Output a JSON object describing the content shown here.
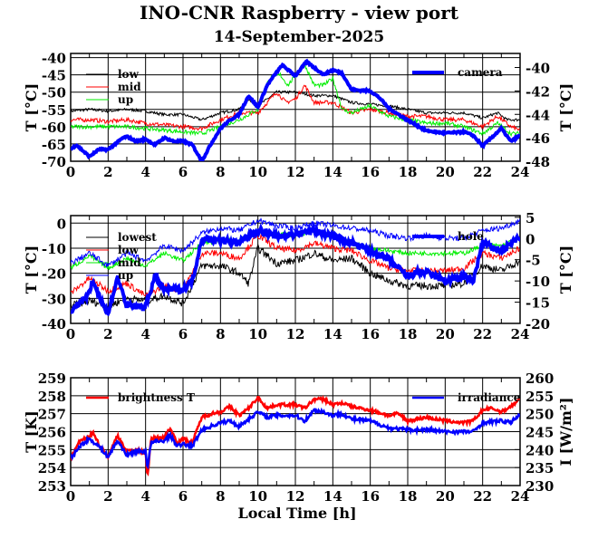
{
  "title": "INO-CNR Raspberry - view port",
  "subtitle": "14-September-2025",
  "chart_data": [
    {
      "type": "line",
      "title": "",
      "xlabel": "",
      "ylabel": "T [°C]",
      "y2label": "T [°C]",
      "xlim": [
        0,
        24
      ],
      "ylim": [
        -70,
        -38.8
      ],
      "y2lim": [
        -48,
        -38.8
      ],
      "xticks": [
        0,
        2,
        4,
        6,
        8,
        10,
        12,
        14,
        16,
        18,
        20,
        22,
        24
      ],
      "yticks": [
        -40,
        -45,
        -50,
        -55,
        -60,
        -65,
        -70
      ],
      "y2ticks": [
        -40,
        -42,
        -44,
        -46,
        -48
      ],
      "grid": true,
      "series": [
        {
          "name": "low",
          "color": "#000000",
          "axis": "left",
          "x": [
            0,
            1,
            2,
            3,
            4,
            5,
            6,
            7,
            8,
            9,
            9.5,
            10,
            11,
            12,
            13,
            14,
            15,
            16,
            17,
            18,
            19,
            20,
            21,
            22,
            22.8,
            23.3,
            24
          ],
          "y": [
            -55.5,
            -55,
            -55.5,
            -55,
            -55.5,
            -56.5,
            -56.5,
            -58,
            -56,
            -55,
            -52,
            -54,
            -50,
            -50,
            -51,
            -51,
            -53,
            -53.5,
            -54,
            -55,
            -56,
            -56,
            -56,
            -57.5,
            -56,
            -58,
            -58
          ]
        },
        {
          "name": "mid",
          "color": "#ff0000",
          "axis": "left",
          "x": [
            0,
            1,
            2,
            3,
            4,
            5,
            6,
            7,
            8,
            9,
            10,
            11,
            11.5,
            12,
            12.5,
            13,
            14,
            15,
            16,
            17,
            18,
            19,
            20,
            21,
            22,
            22.8,
            23.5,
            24
          ],
          "y": [
            -58,
            -58,
            -58.5,
            -58,
            -59,
            -59.5,
            -60,
            -60.5,
            -58,
            -56,
            -56,
            -50,
            -53,
            -52,
            -48,
            -53,
            -53,
            -56,
            -55,
            -56,
            -57,
            -57,
            -58,
            -58,
            -60,
            -57,
            -60,
            -61
          ]
        },
        {
          "name": "up",
          "color": "#00ee00",
          "axis": "left",
          "x": [
            0,
            1,
            2,
            3,
            4,
            5,
            6,
            7,
            8,
            9,
            10,
            10.6,
            11.2,
            11.6,
            12.5,
            13,
            13.5,
            14,
            14.5,
            15,
            16,
            17,
            18,
            19,
            20,
            21,
            22,
            22.8,
            23.5,
            24
          ],
          "y": [
            -60,
            -60,
            -60,
            -60,
            -60.5,
            -61,
            -61.5,
            -62,
            -60,
            -58,
            -55,
            -46,
            -45,
            -48,
            -42,
            -48,
            -48,
            -46,
            -55,
            -56,
            -54,
            -57,
            -58,
            -59,
            -59,
            -60,
            -62,
            -59,
            -62,
            -62
          ]
        },
        {
          "name": "camera",
          "color": "#0000ff",
          "axis": "right",
          "x": [
            0,
            0.3,
            1,
            1.5,
            2,
            2.8,
            3,
            3.5,
            4,
            4.5,
            5,
            5.5,
            6,
            6.5,
            7,
            7.5,
            8,
            8.5,
            9,
            9.5,
            10,
            10.5,
            11,
            11.3,
            12,
            12.6,
            13,
            13.5,
            14,
            14.5,
            15,
            16,
            16.5,
            17,
            18,
            19,
            20,
            21,
            21.5,
            22,
            23,
            23.5,
            24
          ],
          "y": [
            -47,
            -46.6,
            -47.6,
            -47,
            -47,
            -46,
            -45.9,
            -46.3,
            -46.1,
            -46.6,
            -46,
            -46.3,
            -46.3,
            -46.6,
            -48,
            -46.5,
            -45.2,
            -44.5,
            -44,
            -42.4,
            -43.4,
            -41.5,
            -40.4,
            -39.8,
            -40.7,
            -39.5,
            -40,
            -40.6,
            -40.2,
            -40.5,
            -41.9,
            -42,
            -42.6,
            -43.5,
            -44.5,
            -45.4,
            -45.6,
            -45.5,
            -45.8,
            -46.7,
            -45.2,
            -46.3,
            -45.8
          ]
        }
      ]
    },
    {
      "type": "line",
      "title": "",
      "xlabel": "",
      "ylabel": "T [°C]",
      "y2label": "T [°C]",
      "xlim": [
        0,
        24
      ],
      "ylim": [
        -40,
        3
      ],
      "y2lim": [
        -20,
        5.4
      ],
      "xticks": [
        0,
        2,
        4,
        6,
        8,
        10,
        12,
        14,
        16,
        18,
        20,
        22,
        24
      ],
      "yticks": [
        0,
        -10,
        -20,
        -30,
        -40
      ],
      "y2ticks": [
        5,
        0,
        -5,
        -10,
        -15,
        -20
      ],
      "grid": true,
      "series": [
        {
          "name": "lowest",
          "color": "#000000",
          "axis": "left",
          "x": [
            0,
            1,
            2,
            3,
            4,
            5,
            6,
            7,
            8,
            9,
            9.5,
            10,
            11,
            12,
            13,
            14,
            15,
            16,
            17,
            18,
            19,
            20,
            21,
            22,
            23,
            24
          ],
          "y": [
            -33,
            -31,
            -33,
            -30,
            -31,
            -29,
            -32,
            -17,
            -17,
            -20,
            -24,
            -10,
            -16,
            -15,
            -12,
            -15,
            -14,
            -20,
            -23,
            -25,
            -25,
            -25,
            -24,
            -17,
            -19,
            -15
          ]
        },
        {
          "name": "low",
          "color": "#ff0000",
          "axis": "left",
          "x": [
            0,
            1,
            2,
            3,
            4,
            5,
            6,
            7,
            8,
            9,
            10,
            11,
            12,
            13,
            14,
            15,
            16,
            17,
            18,
            19,
            20,
            21,
            22,
            23,
            24
          ],
          "y": [
            -28,
            -22,
            -27,
            -24,
            -29,
            -25,
            -27,
            -12,
            -12,
            -14,
            -5,
            -10,
            -11,
            -8,
            -10,
            -11,
            -15,
            -18,
            -19,
            -19,
            -19,
            -18,
            -12,
            -14,
            -10
          ]
        },
        {
          "name": "mid",
          "color": "#00ee00",
          "axis": "left",
          "x": [
            0,
            1,
            2,
            3,
            4,
            5,
            6,
            7,
            8,
            9,
            10,
            11,
            12,
            13,
            14,
            15,
            16,
            17,
            18,
            19,
            20,
            21,
            22,
            23,
            24
          ],
          "y": [
            -18,
            -13,
            -18,
            -14,
            -17,
            -12,
            -15,
            -8,
            -7,
            -7,
            -3,
            -4,
            -5,
            -3,
            -6,
            -8,
            -10,
            -11,
            -12,
            -12,
            -12,
            -12,
            -9,
            -9,
            -6
          ]
        },
        {
          "name": "up",
          "color": "#0000ff",
          "axis": "left",
          "x": [
            0,
            1,
            2,
            3,
            4,
            5,
            6,
            7,
            8,
            9,
            10,
            11,
            12,
            13,
            14,
            15,
            16,
            17,
            18,
            19,
            20,
            21,
            22,
            23,
            24
          ],
          "y": [
            -16,
            -12,
            -17,
            -12,
            -15,
            -9,
            -11,
            -4,
            -2,
            -3,
            1,
            -1,
            -2,
            0,
            -1,
            -2,
            -3,
            -5,
            -6,
            -5,
            -6,
            -6,
            -3,
            -2,
            1
          ]
        },
        {
          "name": "hole",
          "color": "#0000ff",
          "axis": "right",
          "x": [
            0,
            1,
            1.2,
            2,
            2.5,
            3,
            4,
            4.5,
            5,
            6,
            6.5,
            7,
            8,
            9,
            10,
            11,
            12,
            13,
            14,
            15,
            16,
            17,
            18,
            18.5,
            19,
            20,
            21,
            21.5,
            22,
            23,
            24
          ],
          "y": [
            -17,
            -13,
            -10,
            -18,
            -9,
            -16,
            -16,
            -9,
            -12,
            -12,
            -10,
            0,
            -0.5,
            -1,
            2,
            0.5,
            1,
            2,
            0.5,
            -1,
            -3,
            -5,
            -9,
            -8,
            -8,
            -10,
            -9,
            -10,
            -1,
            -3,
            0.5
          ]
        }
      ]
    },
    {
      "type": "line",
      "title": "",
      "xlabel": "Local Time [h]",
      "ylabel": "T [K]",
      "y2label": "I [W/m²]",
      "xlim": [
        0,
        24
      ],
      "ylim": [
        253,
        259
      ],
      "y2lim": [
        230,
        260
      ],
      "xticks": [
        0,
        2,
        4,
        6,
        8,
        10,
        12,
        14,
        16,
        18,
        20,
        22,
        24
      ],
      "yticks": [
        259,
        258,
        257,
        256,
        255,
        254,
        253
      ],
      "y2ticks": [
        260,
        255,
        250,
        245,
        240,
        235,
        230
      ],
      "grid": true,
      "series": [
        {
          "name": "brightness T",
          "color": "#ff0000",
          "axis": "left",
          "x": [
            0,
            0.5,
            1,
            1.2,
            1.5,
            2,
            2.5,
            3,
            3.5,
            4,
            4.1,
            4.3,
            5,
            5.3,
            5.7,
            6,
            6.5,
            7,
            7.5,
            8,
            8.5,
            9,
            9.5,
            10,
            10.5,
            11,
            12,
            12.5,
            13,
            13.5,
            14,
            14.5,
            15,
            16,
            17,
            17.5,
            18,
            19,
            20,
            21,
            21.5,
            22,
            22.5,
            23,
            23.5,
            24
          ],
          "y": [
            254.5,
            255.5,
            255.7,
            256,
            255.3,
            254.6,
            255.8,
            254.9,
            255,
            254.8,
            253.5,
            255.6,
            255.7,
            256.2,
            255.4,
            255.6,
            255.4,
            256.8,
            257,
            257.1,
            257.4,
            256.9,
            257.3,
            257.9,
            257.3,
            257.5,
            257.5,
            257.3,
            257.8,
            257.8,
            257.5,
            257.6,
            257.4,
            257.2,
            256.9,
            257,
            256.6,
            256.8,
            256.6,
            256.5,
            256.6,
            257.2,
            257.3,
            257.1,
            257.4,
            257.8
          ]
        },
        {
          "name": "irradiance",
          "color": "#0000ff",
          "axis": "right",
          "x": [
            0,
            0.5,
            1,
            1.5,
            2,
            2.5,
            3,
            3.5,
            4,
            4.1,
            4.3,
            5,
            5.3,
            5.7,
            6,
            6.5,
            7,
            7.5,
            8,
            8.5,
            9,
            9.5,
            10,
            10.5,
            11,
            12,
            12.5,
            13,
            13.5,
            14,
            14.5,
            15,
            16,
            17,
            18,
            19,
            20,
            21,
            21.5,
            22,
            23,
            23.5,
            24
          ],
          "y": [
            237.5,
            241,
            243,
            241,
            238,
            242.5,
            238.5,
            239.5,
            239.5,
            235,
            242,
            242.5,
            244,
            241,
            241.5,
            241,
            245.5,
            246.5,
            247.5,
            248,
            246.5,
            248.5,
            250.5,
            249,
            249.5,
            249.5,
            248,
            251,
            250.5,
            249.5,
            250,
            248.5,
            248,
            246,
            245.5,
            245.5,
            245,
            245,
            245,
            247.5,
            248,
            247.5,
            250
          ]
        }
      ]
    }
  ]
}
